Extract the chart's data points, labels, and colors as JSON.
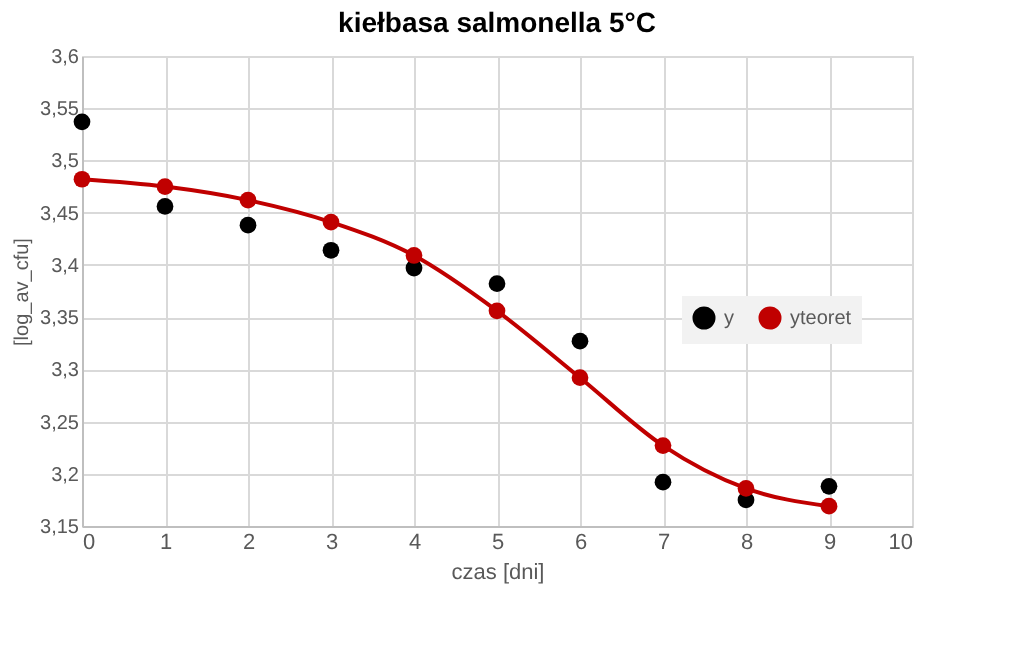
{
  "chart_data": {
    "type": "scatter",
    "title": "kiełbasa salmonella 5°C",
    "xlabel": "czas  [dni]",
    "ylabel": "[log_av_cfu]",
    "x": [
      0,
      1,
      2,
      3,
      4,
      5,
      6,
      7,
      8,
      9
    ],
    "series": [
      {
        "name": "y",
        "type": "scatter",
        "color": "#000000",
        "marker": "circle",
        "values": [
          3.537,
          3.456,
          3.438,
          3.414,
          3.397,
          3.382,
          3.327,
          3.192,
          3.175,
          3.188
        ]
      },
      {
        "name": "yteoret",
        "type": "line",
        "color": "#c00000",
        "marker": "circle",
        "line_style": "solid",
        "values": [
          3.482,
          3.475,
          3.462,
          3.441,
          3.409,
          3.356,
          3.292,
          3.227,
          3.186,
          3.169
        ]
      }
    ],
    "xlim": [
      0,
      10
    ],
    "xticks": [
      0,
      1,
      2,
      3,
      4,
      5,
      6,
      7,
      8,
      9,
      10
    ],
    "ylim": [
      3.15,
      3.6
    ],
    "yticks": [
      {
        "value": 3.15,
        "label": "3,15"
      },
      {
        "value": 3.2,
        "label": "3,2"
      },
      {
        "value": 3.25,
        "label": "3,25"
      },
      {
        "value": 3.3,
        "label": "3,3"
      },
      {
        "value": 3.35,
        "label": "3,35"
      },
      {
        "value": 3.4,
        "label": "3,4"
      },
      {
        "value": 3.45,
        "label": "3,45"
      },
      {
        "value": 3.5,
        "label": "3,5"
      },
      {
        "value": 3.55,
        "label": "3,55"
      },
      {
        "value": 3.6,
        "label": "3,6"
      }
    ],
    "grid": true,
    "legend": "right"
  }
}
